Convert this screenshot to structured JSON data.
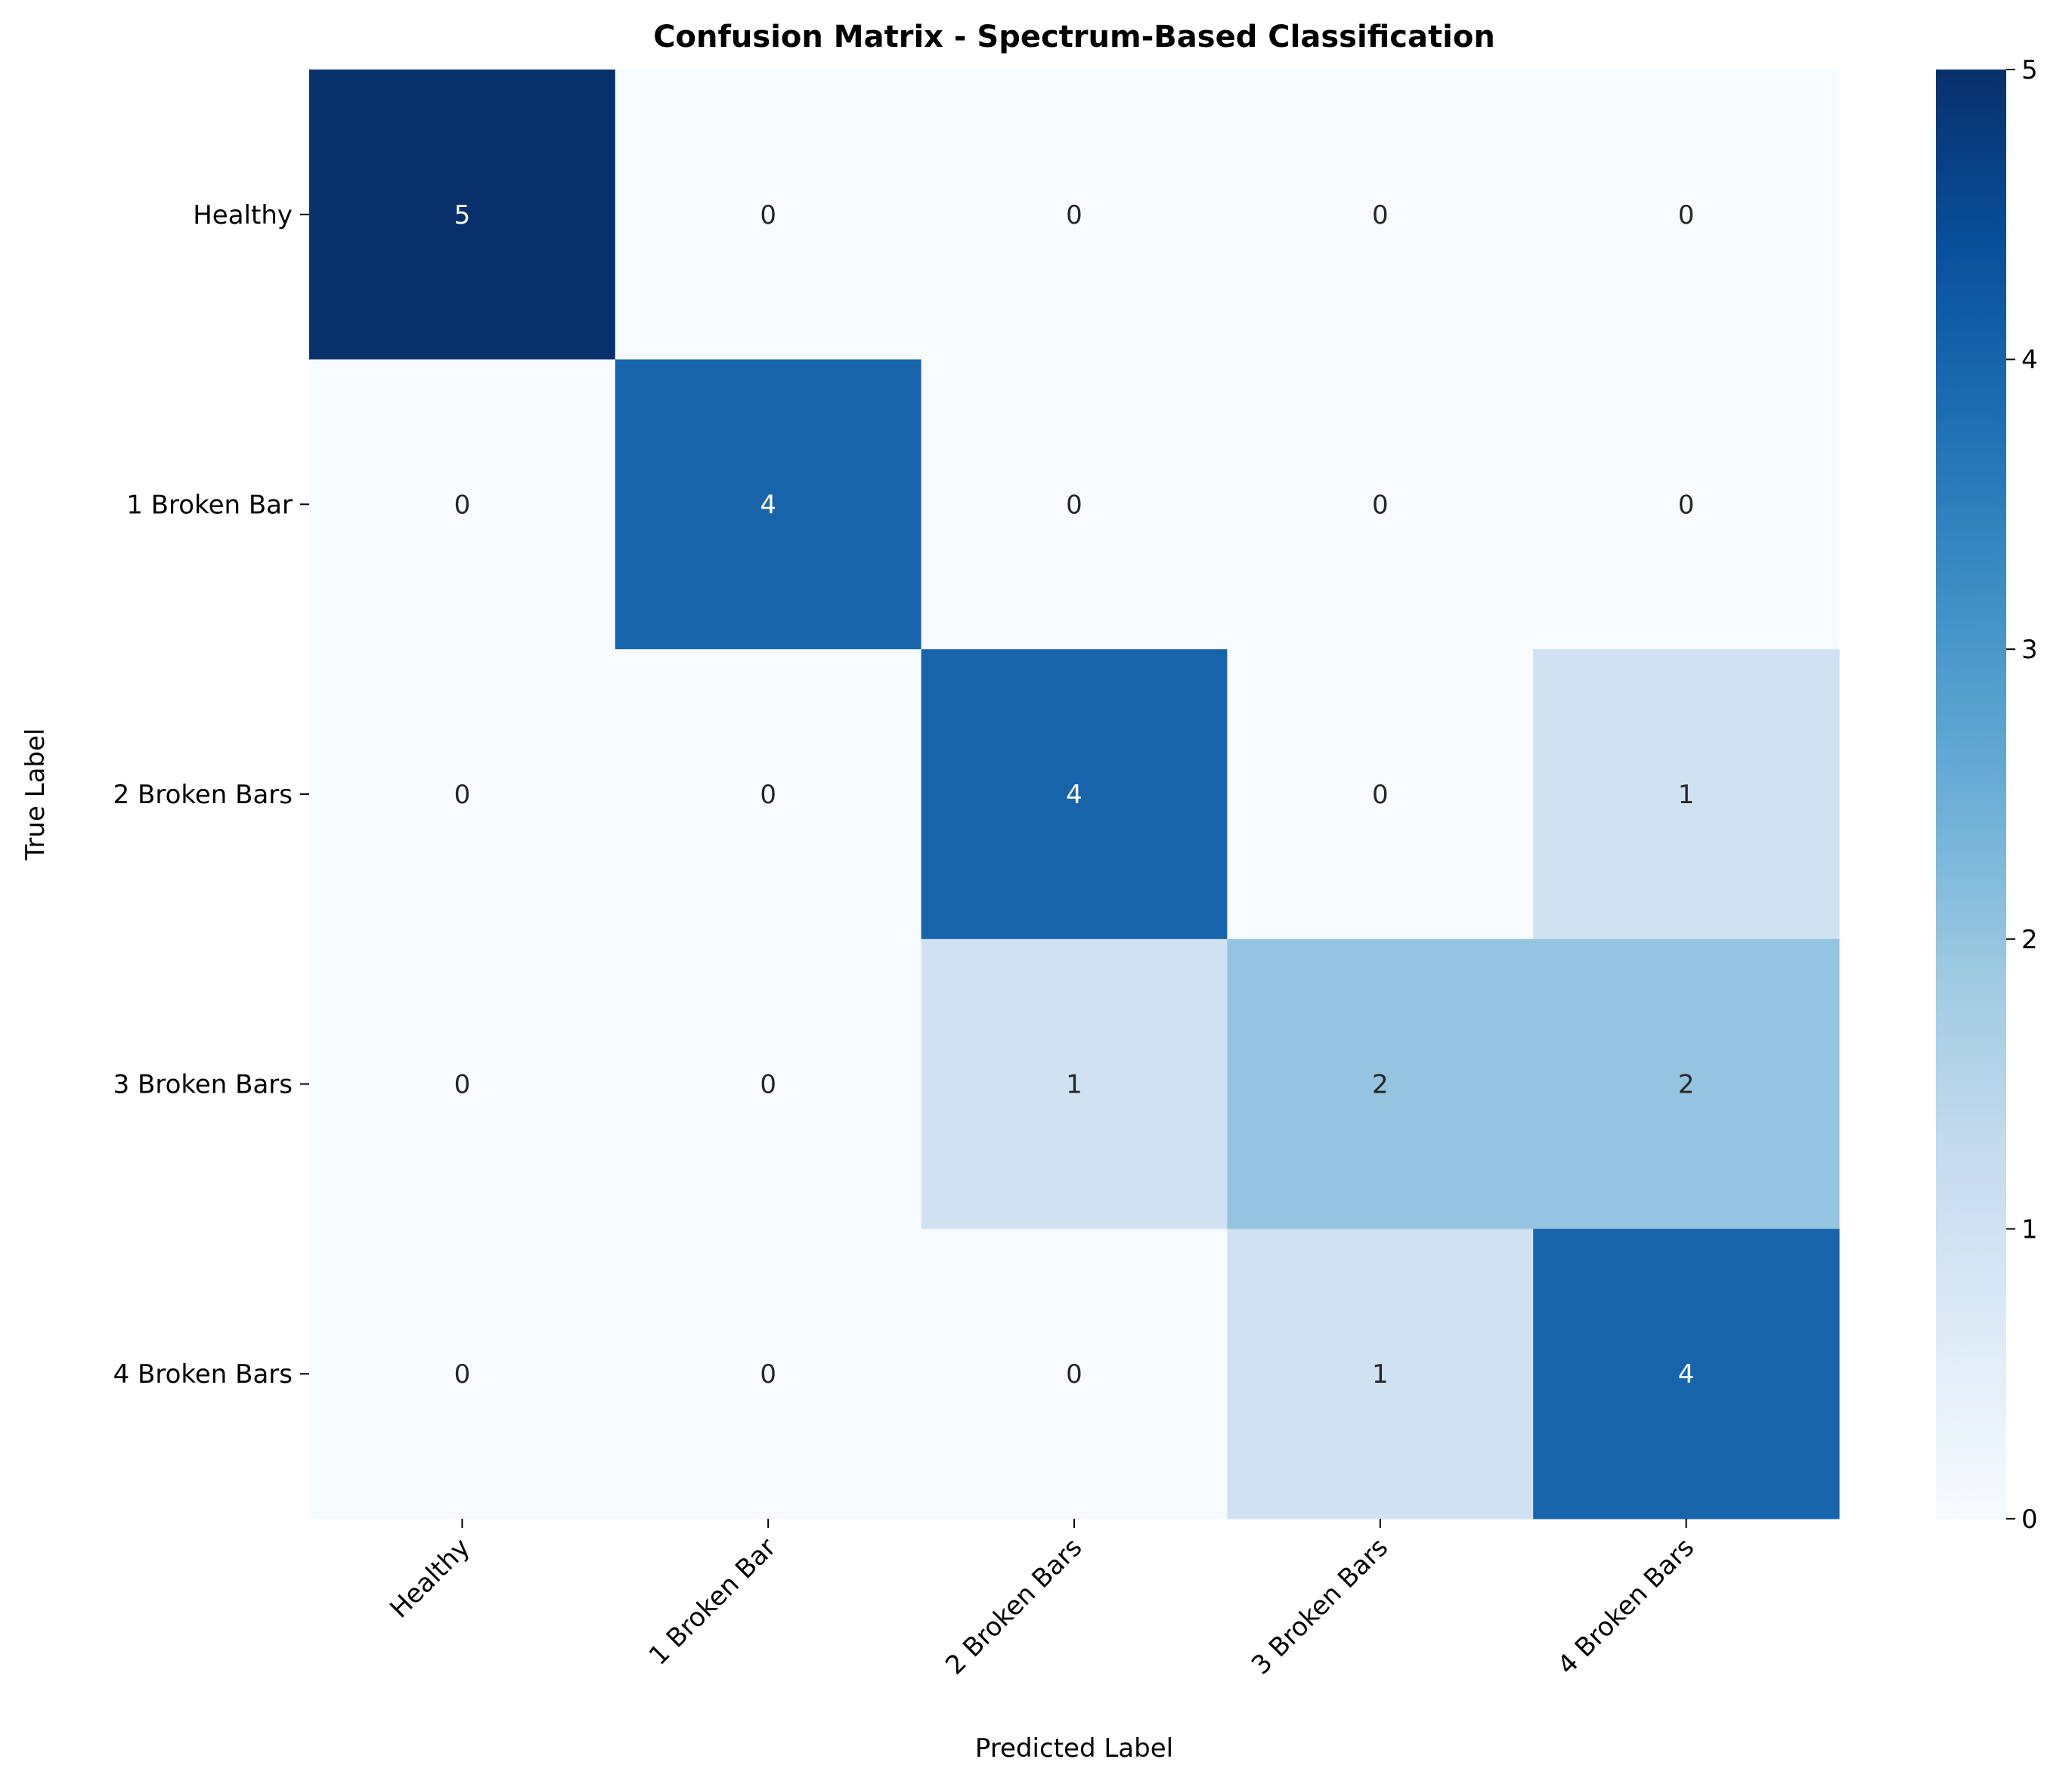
{
  "chart_data": {
    "type": "heatmap",
    "title": "Confusion Matrix - Spectrum-Based Classification",
    "xlabel": "Predicted Label",
    "ylabel": "True Label",
    "x_categories": [
      "Healthy",
      "1 Broken Bar",
      "2 Broken Bars",
      "3 Broken Bars",
      "4 Broken Bars"
    ],
    "y_categories": [
      "Healthy",
      "1 Broken Bar",
      "2 Broken Bars",
      "3 Broken Bars",
      "4 Broken Bars"
    ],
    "values": [
      [
        5,
        0,
        0,
        0,
        0
      ],
      [
        0,
        4,
        0,
        0,
        0
      ],
      [
        0,
        0,
        4,
        0,
        1
      ],
      [
        0,
        0,
        1,
        2,
        2
      ],
      [
        0,
        0,
        0,
        1,
        4
      ]
    ],
    "colormap": "Blues",
    "colorbar": {
      "range": [
        0,
        5
      ],
      "ticks": [
        "0",
        "1",
        "2",
        "3",
        "4",
        "5"
      ]
    },
    "colors": {
      "min": "#f7fbff",
      "max": "#08306b"
    }
  }
}
